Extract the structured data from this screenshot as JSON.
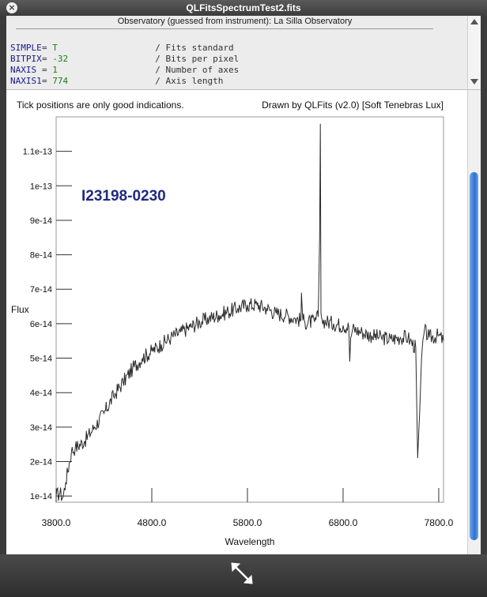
{
  "window": {
    "title": "QLFitsSpectrumTest2.fits",
    "close_glyph": "×"
  },
  "header": {
    "observatory_line": "Observatory (guessed from instrument): La Silla Observatory",
    "cards": [
      {
        "key": "SIMPLE",
        "value": "T",
        "comment": "/ Fits standard"
      },
      {
        "key": "BITPIX",
        "value": "-32",
        "comment": "/ Bits per pixel"
      },
      {
        "key": "NAXIS",
        "value": "1",
        "comment": "/ Number of axes"
      },
      {
        "key": "NAXIS1",
        "value": "774",
        "comment": "/ Axis length"
      }
    ]
  },
  "plot": {
    "note": "Tick positions are only good indications.",
    "credit": "Drawn by QLFits (v2.0) [Soft Tenebras Lux]"
  },
  "chart_data": {
    "type": "line",
    "object_label": "I23198-0230",
    "xlabel": "Wavelength",
    "ylabel": "Flux",
    "xlim": [
      3800,
      7850
    ],
    "ylim": [
      8.2e-15,
      1.2e-13
    ],
    "x_ticks": [
      "3800.0",
      "4800.0",
      "5800.0",
      "6800.0",
      "7800.0"
    ],
    "y_ticks": [
      "1e-14",
      "2e-14",
      "3e-14",
      "4e-14",
      "5e-14",
      "6e-14",
      "7e-14",
      "8e-14",
      "9e-14",
      "1e-13",
      "1.1e-13"
    ],
    "color": "#2a2a2a",
    "label_color": "#1f2a80",
    "series": [
      {
        "x": [
          3800,
          3840,
          3870,
          3900,
          3960,
          4000,
          4100,
          4200,
          4300,
          4400,
          4500,
          4600,
          4700,
          4800,
          4900,
          5000,
          5100,
          5200,
          5300,
          5400,
          5500,
          5600,
          5700,
          5800,
          5900,
          6000,
          6100,
          6200,
          6300,
          6360,
          6365,
          6380,
          6400,
          6500,
          6540,
          6555,
          6562,
          6569,
          6580,
          6700,
          6800,
          6860,
          6870,
          6880,
          6900,
          7000,
          7100,
          7200,
          7300,
          7400,
          7480,
          7500,
          7560,
          7580,
          7600,
          7620,
          7650,
          7700,
          7800,
          7850
        ],
        "y": [
          1e-14,
          1.1e-14,
          9.5e-15,
          1.4e-14,
          2.3e-14,
          2.4e-14,
          2.6e-14,
          3e-14,
          3.4e-14,
          3.9e-14,
          4.3e-14,
          4.7e-14,
          5e-14,
          5.2e-14,
          5.4e-14,
          5.6e-14,
          5.75e-14,
          5.9e-14,
          6.05e-14,
          6.15e-14,
          6.25e-14,
          6.35e-14,
          6.45e-14,
          6.55e-14,
          6.55e-14,
          6.45e-14,
          6.3e-14,
          6.25e-14,
          6.15e-14,
          6.1e-14,
          6.9e-14,
          6.1e-14,
          6.05e-14,
          6.05e-14,
          6.2e-14,
          8.5e-14,
          1.18e-13,
          6.3e-14,
          6.1e-14,
          6e-14,
          5.95e-14,
          5.9e-14,
          4.9e-14,
          5.6e-14,
          5.85e-14,
          5.75e-14,
          5.65e-14,
          5.6e-14,
          5.55e-14,
          5.6e-14,
          5.6e-14,
          5.5e-14,
          5.3e-14,
          2.1e-14,
          3.4e-14,
          5e-14,
          5.8e-14,
          5.6e-14,
          5.65e-14,
          5.5e-14
        ]
      }
    ]
  }
}
